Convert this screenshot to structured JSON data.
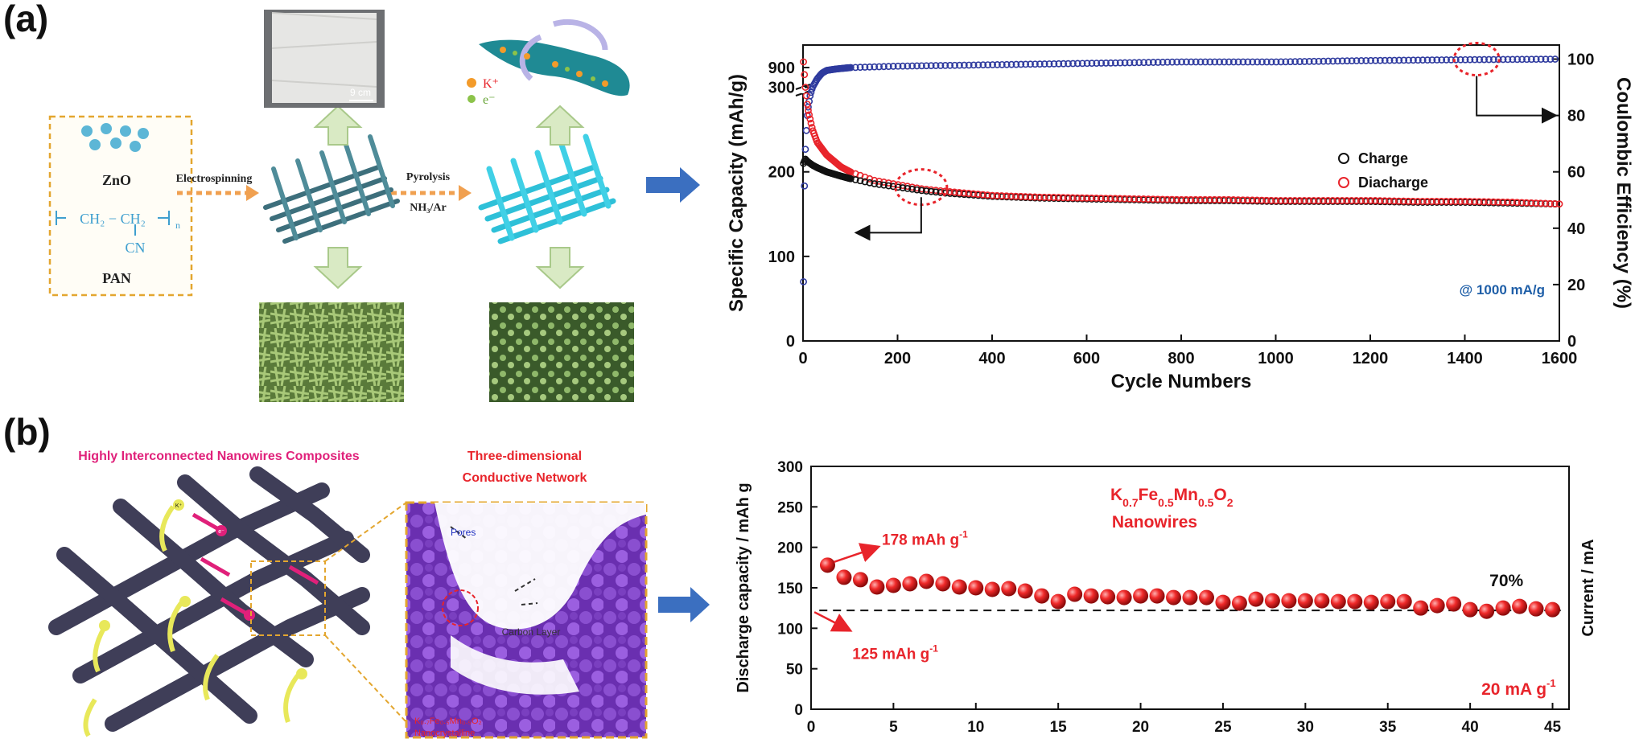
{
  "panels": {
    "a": "(a)",
    "b": "(b)"
  },
  "schematic_a": {
    "zno": "ZnO",
    "pan": "PAN",
    "formula": "CH₂ − CH₂",
    "formula_sub_n": "n",
    "formula_cn": "CN",
    "step1": "Electrospinning",
    "step2": "Pyrolysis",
    "step2_gas": "NH₃/Ar",
    "scale_bar": "9 cm",
    "legend_k": "K⁺",
    "legend_e": "e⁻"
  },
  "schematic_b": {
    "title_left": "Highly Interconnected Nanowires Composites",
    "title_right_line1": "Three-dimensional",
    "title_right_line2": "Conductive Network",
    "pores": "Pores",
    "carbon_layer": "Carbon Layer",
    "nano_line1": "K₀.₇Fe₀.₅Mn₀.₅O₂",
    "nano_line2": "Nanocrystalline",
    "k_label": "K⁺",
    "e_label": "e⁻"
  },
  "colors": {
    "charge": "#111111",
    "discharge": "#e8242b",
    "coulombic": "#2e3a9e",
    "accent_red": "#e8242b",
    "annot_blue": "#1f5fa8",
    "magenta": "#e0207a",
    "arrow_blue": "#3b6fc0",
    "green_arrow": "#b9d79a",
    "orange_arrow": "#f0a050",
    "purple": "#7b3fbf"
  },
  "chart_data": [
    {
      "type": "scatter",
      "xlabel": "Cycle Numbers",
      "ylabel": "Specific Capacity (mAh/g)",
      "ylabel2": "Coulombic Efficiency (%)",
      "x_ticks": [
        "0",
        "200",
        "400",
        "600",
        "800",
        "1000",
        "1200",
        "1400",
        "1600"
      ],
      "y_ticks": [
        "0",
        "100",
        "200",
        "300",
        "900"
      ],
      "y2_ticks": [
        "0",
        "20",
        "40",
        "60",
        "80",
        "100"
      ],
      "xlim": [
        0,
        1600
      ],
      "ylim": [
        0,
        350
      ],
      "y2lim": [
        0,
        105
      ],
      "axis_break": "300-900",
      "legend": [
        "Charge",
        "Diacharge"
      ],
      "legend_position": "right-middle",
      "annotation": "@ 1000 mA/g",
      "series": [
        {
          "name": "Charge",
          "axis": "left",
          "x": [
            1,
            5,
            10,
            20,
            30,
            50,
            80,
            100,
            150,
            200,
            250,
            300,
            400,
            500,
            600,
            700,
            800,
            900,
            1000,
            1100,
            1200,
            1300,
            1400,
            1500,
            1600
          ],
          "y": [
            210,
            215,
            212,
            208,
            205,
            200,
            195,
            192,
            186,
            182,
            178,
            175,
            171,
            169,
            168,
            167,
            166,
            166,
            165,
            165,
            165,
            164,
            164,
            163,
            162
          ]
        },
        {
          "name": "Diacharge",
          "axis": "left",
          "x": [
            1,
            5,
            10,
            20,
            30,
            50,
            80,
            100,
            150,
            200,
            250,
            300,
            400,
            500,
            600,
            700,
            800,
            900,
            1000,
            1100,
            1200,
            1300,
            1400,
            1500,
            1600
          ],
          "y": [
            330,
            300,
            275,
            250,
            235,
            220,
            206,
            200,
            190,
            185,
            180,
            177,
            172,
            170,
            169,
            168,
            167,
            167,
            166,
            166,
            166,
            165,
            165,
            164,
            162
          ]
        },
        {
          "name": "Coulombic Efficiency",
          "axis": "right",
          "x": [
            1,
            3,
            5,
            8,
            10,
            15,
            20,
            30,
            40,
            50,
            70,
            100,
            200,
            400,
            600,
            800,
            1000,
            1200,
            1400,
            1600
          ],
          "y": [
            21,
            55,
            68,
            78,
            82,
            87,
            90,
            93,
            95,
            96,
            96.5,
            97,
            97.5,
            98,
            98.5,
            99,
            99,
            99.5,
            99.8,
            100
          ]
        }
      ]
    },
    {
      "type": "scatter",
      "xlabel": "",
      "ylabel": "Discharge capacity / mAh g",
      "ylabel2": "Current / mA",
      "x_ticks": [
        "0",
        "5",
        "10",
        "15",
        "20",
        "25",
        "30",
        "35",
        "40",
        "45"
      ],
      "y_ticks": [
        "0",
        "50",
        "100",
        "150",
        "200",
        "250",
        "300"
      ],
      "xlim": [
        0,
        46
      ],
      "ylim": [
        0,
        300
      ],
      "reference_line": 122,
      "label_material_main": "K",
      "label_material_parts": [
        "0.7",
        "Fe",
        "0.5",
        "Mn",
        "0.5",
        "O",
        "2"
      ],
      "label_material_line2": "Nanowires",
      "annot_178": "178 mAh g",
      "annot_125": "125 mAh g",
      "annot_sup": "-1",
      "annot_pct": "70%",
      "annot_current": "20 mA g",
      "series": [
        {
          "name": "Discharge",
          "x": [
            1,
            2,
            3,
            4,
            5,
            6,
            7,
            8,
            9,
            10,
            11,
            12,
            13,
            14,
            15,
            16,
            17,
            18,
            19,
            20,
            21,
            22,
            23,
            24,
            25,
            26,
            27,
            28,
            29,
            30,
            31,
            32,
            33,
            34,
            35,
            36,
            37,
            38,
            39,
            40,
            41,
            42,
            43,
            44,
            45
          ],
          "y": [
            178,
            163,
            160,
            151,
            153,
            155,
            158,
            155,
            151,
            150,
            148,
            149,
            146,
            140,
            133,
            142,
            140,
            139,
            138,
            140,
            140,
            138,
            138,
            138,
            132,
            131,
            136,
            134,
            134,
            134,
            134,
            133,
            133,
            132,
            133,
            133,
            125,
            128,
            130,
            123,
            121,
            125,
            127,
            124,
            123
          ]
        }
      ]
    }
  ]
}
